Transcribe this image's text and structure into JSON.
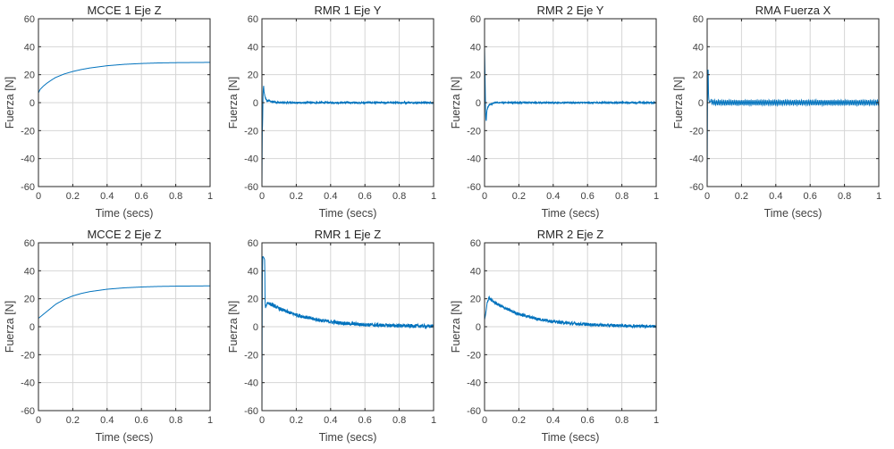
{
  "chart_data": [
    {
      "type": "line",
      "title": "MCCE 1 Eje Z",
      "xlabel": "Time (secs)",
      "ylabel": "Fuerza [N]",
      "xlim": [
        0,
        1
      ],
      "ylim": [
        -60,
        60
      ],
      "xticks": [
        "0",
        "0.2",
        "0.4",
        "0.6",
        "0.8",
        "1"
      ],
      "yticks": [
        "60",
        "40",
        "20",
        "0",
        "-20",
        "-40",
        "-60"
      ],
      "grid": true,
      "line_color": "#0072bd",
      "series": [
        {
          "x": [
            0,
            0.01,
            0.03,
            0.05,
            0.08,
            0.1,
            0.15,
            0.2,
            0.25,
            0.3,
            0.4,
            0.5,
            0.6,
            0.7,
            0.8,
            0.9,
            1.0
          ],
          "y": [
            7,
            9.5,
            12,
            14,
            16.5,
            18,
            20.5,
            22.3,
            23.7,
            24.8,
            26.4,
            27.4,
            28,
            28.4,
            28.6,
            28.7,
            28.8
          ]
        }
      ]
    },
    {
      "type": "line",
      "title": "RMR 1 Eje Y",
      "xlabel": "Time (secs)",
      "ylabel": "Fuerza [N]",
      "xlim": [
        0,
        1
      ],
      "ylim": [
        -60,
        60
      ],
      "xticks": [
        "0",
        "0.2",
        "0.4",
        "0.6",
        "0.8",
        "1"
      ],
      "yticks": [
        "60",
        "40",
        "20",
        "0",
        "-20",
        "-40",
        "-60"
      ],
      "grid": true,
      "line_color": "#0072bd",
      "series": [
        {
          "x": [
            0,
            0.002,
            0.004,
            0.006,
            0.008,
            0.01,
            0.012,
            0.015,
            0.02,
            0.03,
            0.04,
            0.05,
            0.06,
            0.08,
            0.1,
            0.2,
            0.3,
            0.4,
            0.5,
            0.6,
            0.7,
            0.8,
            0.9,
            1.0
          ],
          "y": [
            -60,
            -20,
            -15,
            5,
            10,
            12,
            8,
            6,
            3,
            1,
            1.5,
            1,
            0.5,
            0.5,
            0,
            0,
            0,
            0,
            0,
            0,
            0,
            0,
            0,
            0
          ],
          "noise": 0.6
        }
      ]
    },
    {
      "type": "line",
      "title": "RMR 2 Eje Y",
      "xlabel": "Time (secs)",
      "ylabel": "Fuerza [N]",
      "xlim": [
        0,
        1
      ],
      "ylim": [
        -60,
        60
      ],
      "xticks": [
        "0",
        "0.2",
        "0.4",
        "0.6",
        "0.8",
        "1"
      ],
      "yticks": [
        "60",
        "40",
        "20",
        "0",
        "-20",
        "-40",
        "-60"
      ],
      "grid": true,
      "line_color": "#0072bd",
      "series": [
        {
          "x": [
            0,
            0.002,
            0.004,
            0.006,
            0.008,
            0.01,
            0.012,
            0.015,
            0.02,
            0.025,
            0.03,
            0.04,
            0.05,
            0.06,
            0.08,
            0.1,
            0.2,
            0.3,
            0.4,
            0.5,
            0.6,
            0.7,
            0.8,
            0.9,
            1.0
          ],
          "y": [
            40,
            25,
            10,
            -5,
            -12,
            -13,
            -8,
            -5,
            -3,
            -2,
            -1.5,
            -1,
            -0.5,
            0,
            0,
            0,
            0,
            0,
            0,
            0,
            0,
            0,
            0,
            0,
            0
          ],
          "noise": 0.5
        }
      ]
    },
    {
      "type": "line",
      "title": "RMA Fuerza X",
      "xlabel": "Time (secs)",
      "ylabel": "Fuerza [N]",
      "xlim": [
        0,
        1
      ],
      "ylim": [
        -60,
        60
      ],
      "xticks": [
        "0",
        "0.2",
        "0.4",
        "0.6",
        "0.8",
        "1"
      ],
      "yticks": [
        "60",
        "40",
        "20",
        "0",
        "-20",
        "-40",
        "-60"
      ],
      "grid": true,
      "line_color": "#0072bd",
      "series": [
        {
          "x": [
            0,
            0.002,
            0.004,
            0.006,
            0.008,
            0.01,
            0.015,
            0.02,
            0.04,
            0.06,
            0.1,
            0.2,
            0.3,
            0.4,
            0.5,
            0.6,
            0.7,
            0.8,
            0.9,
            1.0
          ],
          "y": [
            -60,
            0,
            22,
            24,
            5,
            2,
            0,
            1,
            0,
            0,
            0,
            0,
            0,
            0,
            0,
            0,
            0,
            0,
            0,
            0
          ],
          "oscillation": 2
        }
      ]
    },
    {
      "type": "line",
      "title": "MCCE 2 Eje Z",
      "xlabel": "Time (secs)",
      "ylabel": "Fuerza [N]",
      "xlim": [
        0,
        1
      ],
      "ylim": [
        -60,
        60
      ],
      "xticks": [
        "0",
        "0.2",
        "0.4",
        "0.6",
        "0.8",
        "1"
      ],
      "yticks": [
        "60",
        "40",
        "20",
        "0",
        "-20",
        "-40",
        "-60"
      ],
      "grid": true,
      "line_color": "#0072bd",
      "series": [
        {
          "x": [
            0,
            0.02,
            0.05,
            0.08,
            0.1,
            0.15,
            0.2,
            0.25,
            0.3,
            0.4,
            0.5,
            0.6,
            0.7,
            0.8,
            0.9,
            1.0
          ],
          "y": [
            6,
            8,
            11,
            14,
            16,
            19.5,
            22,
            23.8,
            25.1,
            26.8,
            27.8,
            28.4,
            28.8,
            29,
            29.1,
            29.2
          ]
        }
      ]
    },
    {
      "type": "line",
      "title": "RMR 1 Eje Z",
      "xlabel": "Time (secs)",
      "ylabel": "Fuerza [N]",
      "xlim": [
        0,
        1
      ],
      "ylim": [
        -60,
        60
      ],
      "xticks": [
        "0",
        "0.2",
        "0.4",
        "0.6",
        "0.8",
        "1"
      ],
      "yticks": [
        "60",
        "40",
        "20",
        "0",
        "-20",
        "-40",
        "-60"
      ],
      "grid": true,
      "line_color": "#0072bd",
      "series": [
        {
          "x": [
            0,
            0.002,
            0.004,
            0.006,
            0.008,
            0.012,
            0.016,
            0.018,
            0.02,
            0.025,
            0.03,
            0.04,
            0.05,
            0.07,
            0.1,
            0.15,
            0.2,
            0.3,
            0.4,
            0.5,
            0.6,
            0.7,
            0.8,
            0.9,
            1.0
          ],
          "y": [
            -60,
            30,
            50,
            50,
            50,
            49,
            48,
            20,
            14,
            15,
            17,
            17,
            16,
            15,
            13,
            10.5,
            8.5,
            5.5,
            3.5,
            2.2,
            1.5,
            1,
            0.7,
            0.5,
            0.3
          ],
          "noise": 1.3
        }
      ]
    },
    {
      "type": "line",
      "title": "RMR 2 Eje Z",
      "xlabel": "Time (secs)",
      "ylabel": "Fuerza [N]",
      "xlim": [
        0,
        1
      ],
      "ylim": [
        -60,
        60
      ],
      "xticks": [
        "0",
        "0.2",
        "0.4",
        "0.6",
        "0.8",
        "1"
      ],
      "yticks": [
        "60",
        "40",
        "20",
        "0",
        "-20",
        "-40",
        "-60"
      ],
      "grid": true,
      "line_color": "#0072bd",
      "series": [
        {
          "x": [
            0,
            0.005,
            0.01,
            0.015,
            0.02,
            0.025,
            0.03,
            0.04,
            0.05,
            0.07,
            0.1,
            0.15,
            0.2,
            0.3,
            0.4,
            0.5,
            0.6,
            0.7,
            0.8,
            0.9,
            1.0
          ],
          "y": [
            5,
            8,
            12,
            17,
            19,
            21,
            20,
            19,
            18,
            16.5,
            14.5,
            11.5,
            9,
            5.8,
            3.7,
            2.4,
            1.6,
            1.1,
            0.8,
            0.5,
            0.3
          ],
          "noise": 1.1
        }
      ]
    }
  ]
}
